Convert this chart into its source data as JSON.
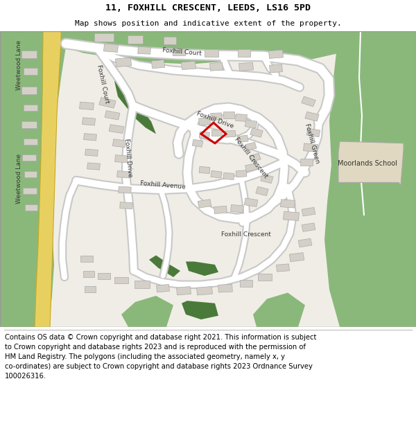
{
  "title_line1": "11, FOXHILL CRESCENT, LEEDS, LS16 5PD",
  "title_line2": "Map shows position and indicative extent of the property.",
  "footer_lines": [
    "Contains OS data © Crown copyright and database right 2021. This information is subject",
    "to Crown copyright and database rights 2023 and is reproduced with the permission of",
    "HM Land Registry. The polygons (including the associated geometry, namely x, y",
    "co-ordinates) are subject to Crown copyright and database rights 2023 Ordnance Survey",
    "100026316."
  ],
  "bg_color": "#ffffff",
  "map_bg": "#f0ede6",
  "green_light": "#8ab87a",
  "green_dark": "#4a7a3a",
  "road_white": "#ffffff",
  "road_outline": "#c8c8c8",
  "building_fill": "#d4d0c8",
  "building_edge": "#aaaaaa",
  "highlight_red": "#cc0000",
  "school_fill": "#e0d8c0",
  "road_yellow_fill": "#e8d060",
  "road_yellow_edge": "#c8a820",
  "title_fontsize": 9.5,
  "subtitle_fontsize": 8.0,
  "footer_fontsize": 7.2,
  "label_fontsize": 6.5
}
